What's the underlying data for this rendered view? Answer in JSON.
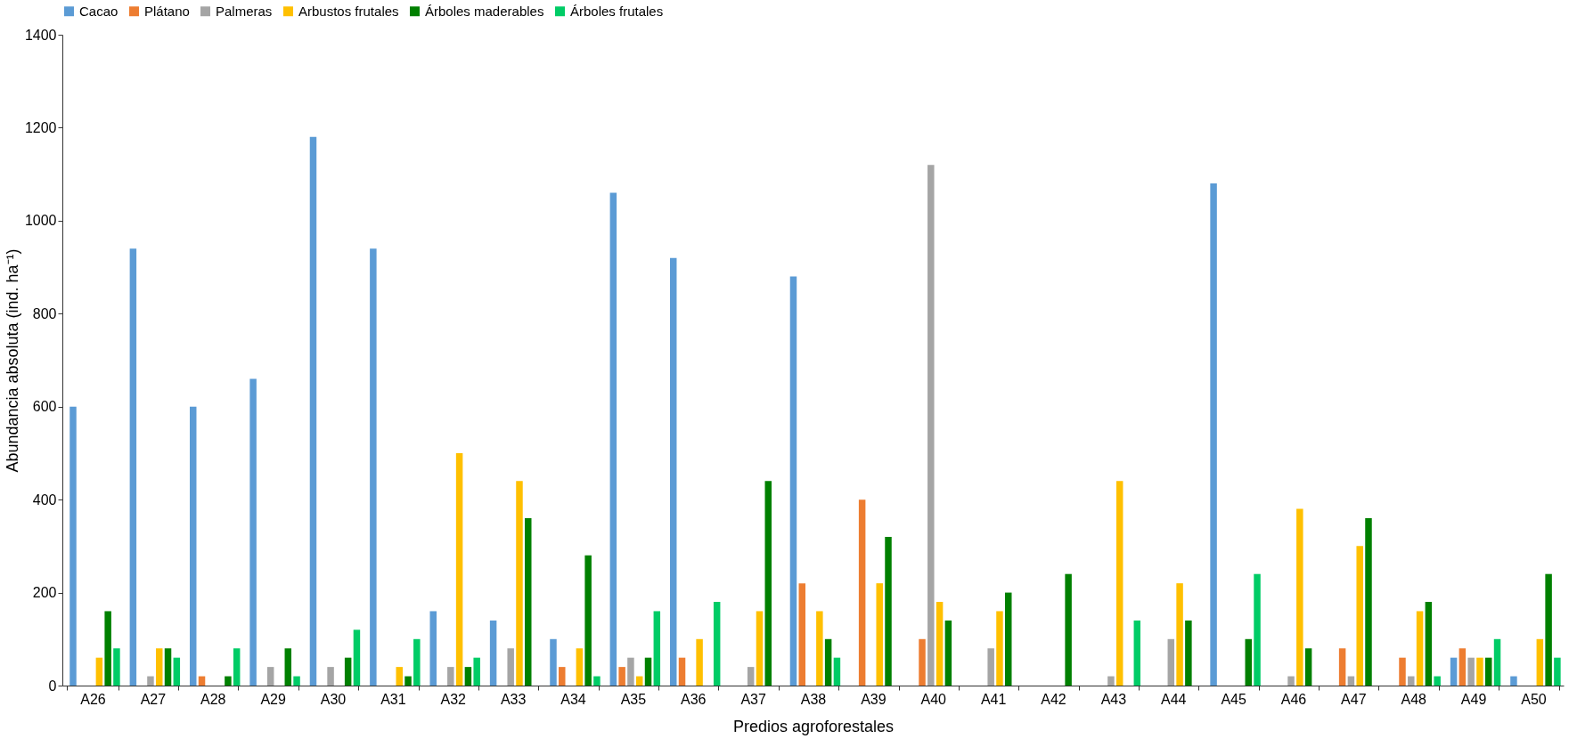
{
  "chart_data": {
    "type": "bar",
    "xlabel": "Predios agroforestales",
    "ylabel": "Abundancia absoluta (ind. ha⁻¹)",
    "categories": [
      "A26",
      "A27",
      "A28",
      "A29",
      "A30",
      "A31",
      "A32",
      "A33",
      "A34",
      "A35",
      "A36",
      "A37",
      "A38",
      "A39",
      "A40",
      "A41",
      "A42",
      "A43",
      "A44",
      "A45",
      "A46",
      "A47",
      "A48",
      "A49",
      "A50"
    ],
    "series": [
      {
        "name": "Cacao",
        "color": "#5b9bd5",
        "values": [
          600,
          940,
          600,
          660,
          1180,
          940,
          160,
          140,
          100,
          1060,
          920,
          0,
          880,
          0,
          0,
          0,
          0,
          0,
          0,
          1080,
          0,
          0,
          0,
          60,
          20
        ]
      },
      {
        "name": "Plátano",
        "color": "#ed7d31",
        "values": [
          0,
          0,
          20,
          0,
          0,
          0,
          0,
          0,
          40,
          40,
          60,
          0,
          220,
          400,
          100,
          0,
          0,
          0,
          0,
          0,
          0,
          80,
          60,
          80,
          0
        ]
      },
      {
        "name": "Palmeras",
        "color": "#a5a5a5",
        "values": [
          0,
          20,
          0,
          40,
          40,
          0,
          40,
          80,
          0,
          60,
          0,
          40,
          0,
          0,
          1120,
          80,
          0,
          20,
          100,
          0,
          20,
          20,
          20,
          60,
          0
        ]
      },
      {
        "name": "Arbustos frutales",
        "color": "#ffc000",
        "values": [
          60,
          80,
          0,
          0,
          0,
          40,
          500,
          440,
          80,
          20,
          100,
          160,
          160,
          220,
          180,
          160,
          0,
          440,
          220,
          0,
          380,
          300,
          160,
          60,
          100
        ]
      },
      {
        "name": "Árboles maderables",
        "color": "#008000",
        "values": [
          160,
          80,
          20,
          80,
          60,
          20,
          40,
          360,
          280,
          60,
          0,
          440,
          100,
          320,
          140,
          200,
          240,
          0,
          140,
          100,
          80,
          360,
          180,
          60,
          240
        ]
      },
      {
        "name": "Árboles frutales",
        "color": "#00cc66",
        "values": [
          80,
          60,
          80,
          20,
          120,
          100,
          60,
          0,
          20,
          160,
          180,
          0,
          60,
          0,
          0,
          0,
          0,
          140,
          0,
          240,
          0,
          0,
          20,
          100,
          60
        ]
      }
    ],
    "ylim": [
      0,
      1400
    ],
    "yticks": [
      0,
      200,
      400,
      600,
      800,
      1000,
      1200,
      1400
    ],
    "grid": false,
    "legend": "top"
  }
}
